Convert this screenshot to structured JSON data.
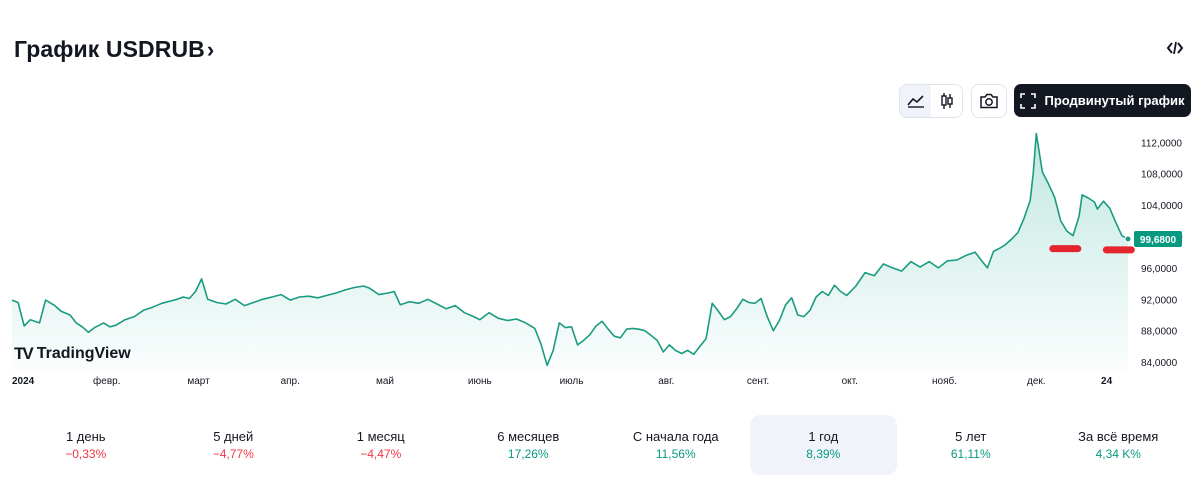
{
  "header": {
    "title": "График USDRUB",
    "chevron": "›",
    "embed_icon": "code-icon"
  },
  "toolbar": {
    "chart_style_area_icon": "area-chart-icon",
    "chart_style_candles_icon": "candles-icon",
    "snapshot_icon": "camera-icon",
    "advanced_label": "Продвинутый график",
    "advanced_icon": "fullscreen-icon"
  },
  "brand": {
    "name": "TradingView",
    "logo": "TV"
  },
  "colors": {
    "line": "#1a9b82",
    "price_tag": "#089981",
    "negative": "#f23645",
    "positive": "#089981",
    "marker": "#e5252e"
  },
  "chart_data": {
    "type": "area",
    "symbol": "USDRUB",
    "last_value": 99.68,
    "last_value_label": "99,6800",
    "ylim": [
      83,
      114.2
    ],
    "y_ticks": [
      84,
      88,
      92,
      96,
      100,
      104,
      108,
      112
    ],
    "y_tick_labels": [
      "84,0000",
      "88,0000",
      "92,0000",
      "96,0000",
      "100,0000",
      "104,0000",
      "108,0000",
      "112,0000"
    ],
    "x_labels": [
      "2024",
      "февр.",
      "март",
      "апр.",
      "май",
      "июнь",
      "июль",
      "авг.",
      "сент.",
      "окт.",
      "нояб.",
      "дек.",
      "24"
    ],
    "x_label_days": [
      0,
      31,
      61,
      91,
      122,
      153,
      183,
      214,
      244,
      274,
      305,
      335,
      358
    ],
    "points": [
      [
        0,
        91.9
      ],
      [
        2,
        91.6
      ],
      [
        4,
        88.6
      ],
      [
        6,
        89.4
      ],
      [
        9,
        89.0
      ],
      [
        11,
        91.9
      ],
      [
        14,
        91.2
      ],
      [
        16,
        90.5
      ],
      [
        19,
        90.0
      ],
      [
        21,
        89.0
      ],
      [
        23,
        88.5
      ],
      [
        25,
        87.8
      ],
      [
        27,
        88.4
      ],
      [
        30,
        89.0
      ],
      [
        32,
        88.5
      ],
      [
        34,
        88.7
      ],
      [
        37,
        89.4
      ],
      [
        40,
        89.8
      ],
      [
        43,
        90.6
      ],
      [
        46,
        91.0
      ],
      [
        49,
        91.5
      ],
      [
        52,
        91.8
      ],
      [
        54,
        92.0
      ],
      [
        56,
        92.3
      ],
      [
        58,
        92.1
      ],
      [
        60,
        93.0
      ],
      [
        62,
        94.6
      ],
      [
        64,
        92.0
      ],
      [
        67,
        91.6
      ],
      [
        70,
        91.4
      ],
      [
        73,
        92.0
      ],
      [
        76,
        91.2
      ],
      [
        79,
        91.6
      ],
      [
        82,
        92.0
      ],
      [
        85,
        92.3
      ],
      [
        88,
        92.6
      ],
      [
        91,
        91.9
      ],
      [
        94,
        92.3
      ],
      [
        97,
        92.4
      ],
      [
        100,
        92.2
      ],
      [
        103,
        92.5
      ],
      [
        106,
        92.8
      ],
      [
        109,
        93.2
      ],
      [
        112,
        93.5
      ],
      [
        115,
        93.7
      ],
      [
        117,
        93.4
      ],
      [
        120,
        92.6
      ],
      [
        123,
        92.8
      ],
      [
        125,
        93.0
      ],
      [
        127,
        91.3
      ],
      [
        130,
        91.7
      ],
      [
        133,
        91.5
      ],
      [
        136,
        92.0
      ],
      [
        139,
        91.4
      ],
      [
        142,
        90.8
      ],
      [
        145,
        91.2
      ],
      [
        148,
        90.3
      ],
      [
        151,
        89.8
      ],
      [
        153,
        89.4
      ],
      [
        156,
        90.3
      ],
      [
        159,
        89.6
      ],
      [
        162,
        89.3
      ],
      [
        165,
        89.5
      ],
      [
        168,
        89.0
      ],
      [
        171,
        88.3
      ],
      [
        173,
        86.3
      ],
      [
        175,
        83.6
      ],
      [
        177,
        85.5
      ],
      [
        179,
        89.0
      ],
      [
        181,
        88.4
      ],
      [
        183,
        88.5
      ],
      [
        185,
        86.2
      ],
      [
        187,
        86.8
      ],
      [
        189,
        87.5
      ],
      [
        191,
        88.6
      ],
      [
        193,
        89.2
      ],
      [
        195,
        88.2
      ],
      [
        197,
        87.3
      ],
      [
        199,
        87.1
      ],
      [
        201,
        88.2
      ],
      [
        203,
        88.3
      ],
      [
        205,
        88.2
      ],
      [
        207,
        88.0
      ],
      [
        209,
        87.4
      ],
      [
        211,
        86.8
      ],
      [
        213,
        85.3
      ],
      [
        215,
        86.2
      ],
      [
        217,
        85.5
      ],
      [
        219,
        85.1
      ],
      [
        221,
        85.5
      ],
      [
        223,
        85.0
      ],
      [
        225,
        86.0
      ],
      [
        227,
        87.0
      ],
      [
        229,
        91.5
      ],
      [
        231,
        90.5
      ],
      [
        233,
        89.4
      ],
      [
        235,
        89.8
      ],
      [
        237,
        90.8
      ],
      [
        239,
        92.0
      ],
      [
        241,
        91.6
      ],
      [
        243,
        91.5
      ],
      [
        245,
        92.1
      ],
      [
        247,
        89.8
      ],
      [
        249,
        88.0
      ],
      [
        251,
        89.3
      ],
      [
        253,
        91.3
      ],
      [
        255,
        92.2
      ],
      [
        257,
        90.0
      ],
      [
        259,
        89.8
      ],
      [
        261,
        90.6
      ],
      [
        263,
        92.3
      ],
      [
        265,
        93.0
      ],
      [
        267,
        92.5
      ],
      [
        269,
        93.8
      ],
      [
        271,
        93.0
      ],
      [
        273,
        92.5
      ],
      [
        276,
        93.7
      ],
      [
        279,
        95.4
      ],
      [
        282,
        95.0
      ],
      [
        285,
        96.5
      ],
      [
        288,
        96.0
      ],
      [
        291,
        95.6
      ],
      [
        294,
        96.8
      ],
      [
        297,
        96.1
      ],
      [
        300,
        96.8
      ],
      [
        303,
        96.0
      ],
      [
        306,
        96.9
      ],
      [
        309,
        97.0
      ],
      [
        312,
        97.6
      ],
      [
        315,
        98.0
      ],
      [
        317,
        97.0
      ],
      [
        319,
        96.0
      ],
      [
        321,
        98.1
      ],
      [
        323,
        98.5
      ],
      [
        325,
        99.0
      ],
      [
        327,
        99.7
      ],
      [
        329,
        100.5
      ],
      [
        331,
        102.3
      ],
      [
        333,
        104.6
      ],
      [
        334,
        108.0
      ],
      [
        335,
        113.1
      ],
      [
        337,
        108.2
      ],
      [
        339,
        106.7
      ],
      [
        341,
        105.0
      ],
      [
        343,
        102.0
      ],
      [
        345,
        100.7
      ],
      [
        347,
        100.1
      ],
      [
        349,
        102.6
      ],
      [
        350,
        105.3
      ],
      [
        352,
        104.9
      ],
      [
        354,
        104.4
      ],
      [
        355,
        103.5
      ],
      [
        357,
        104.5
      ],
      [
        359,
        103.6
      ],
      [
        361,
        101.8
      ],
      [
        363,
        100.1
      ],
      [
        365,
        99.68
      ]
    ],
    "markers": [
      {
        "day": 344.5,
        "value": 98.45
      },
      {
        "day": 362,
        "value": 98.3
      }
    ]
  },
  "periods": [
    {
      "label": "1 день",
      "value": "−0,33%",
      "sign": "neg"
    },
    {
      "label": "5 дней",
      "value": "−4,77%",
      "sign": "neg"
    },
    {
      "label": "1 месяц",
      "value": "−4,47%",
      "sign": "neg"
    },
    {
      "label": "6 месяцев",
      "value": "17,26%",
      "sign": "pos"
    },
    {
      "label": "С начала года",
      "value": "11,56%",
      "sign": "pos"
    },
    {
      "label": "1 год",
      "value": "8,39%",
      "sign": "pos",
      "active": true
    },
    {
      "label": "5 лет",
      "value": "61,11%",
      "sign": "pos"
    },
    {
      "label": "За всё время",
      "value": "4,34 K%",
      "sign": "pos"
    }
  ]
}
